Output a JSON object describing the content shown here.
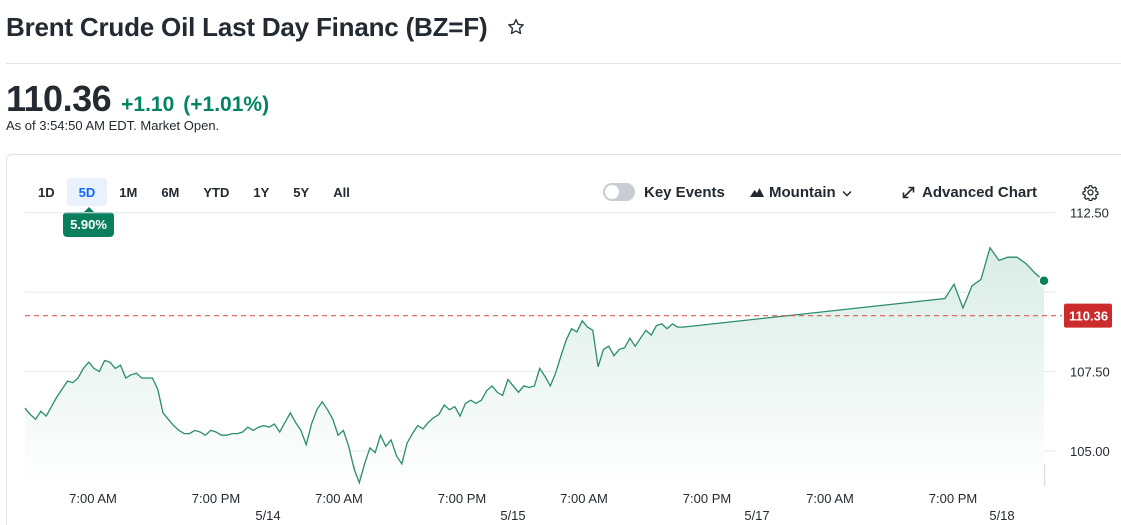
{
  "header": {
    "title": "Brent Crude Oil Last Day Financ (BZ=F)",
    "watchlist_icon": "star-outline-icon"
  },
  "quote": {
    "price": "110.36",
    "change": "+1.10",
    "change_percent": "(+1.01%)",
    "as_of": "As of 3:54:50 AM EDT. Market Open.",
    "positive_color": "#008463"
  },
  "range_tabs": [
    {
      "label": "1D",
      "active": false
    },
    {
      "label": "5D",
      "active": true
    },
    {
      "label": "1M",
      "active": false
    },
    {
      "label": "6M",
      "active": false
    },
    {
      "label": "YTD",
      "active": false
    },
    {
      "label": "1Y",
      "active": false
    },
    {
      "label": "5Y",
      "active": false
    },
    {
      "label": "All",
      "active": false
    }
  ],
  "range_badge": "5.90%",
  "toolbar": {
    "key_events_label": "Key Events",
    "key_events_on": false,
    "chart_type_label": "Mountain",
    "chart_type_icon": "mountain-icon",
    "advanced_chart_label": "Advanced Chart",
    "advanced_chart_icon": "expand-arrows-icon",
    "settings_icon": "gear-icon"
  },
  "chart_data": {
    "type": "area",
    "title": "",
    "xlabel": "",
    "ylabel": "",
    "ylim": [
      103.9,
      112.9
    ],
    "y_ticks": [
      "112.50",
      "107.50",
      "105.00"
    ],
    "x_time_ticks": [
      "7:00 AM",
      "7:00 PM",
      "7:00 AM",
      "7:00 PM",
      "7:00 AM",
      "7:00 PM",
      "7:00 AM",
      "7:00 PM"
    ],
    "x_date_ticks": [
      "5/14",
      "5/15",
      "5/17",
      "5/18"
    ],
    "previous_close": 109.26,
    "last_price": 110.36,
    "last_price_label": "110.36",
    "line_color": "#2a8c6e",
    "area_color": "#dcefe8",
    "prev_close_color": "#e05a5a",
    "last_price_color": "#cc2b2b",
    "grid": true,
    "series": [
      {
        "values": [
          106.35,
          106.15,
          106.0,
          106.25,
          106.1,
          106.4,
          106.7,
          106.95,
          107.2,
          107.15,
          107.3,
          107.6,
          107.8,
          107.6,
          107.5,
          107.85,
          107.8,
          107.6,
          107.7,
          107.3,
          107.4,
          107.45,
          107.3,
          107.3,
          107.3,
          106.95,
          106.2,
          106.0,
          105.8,
          105.65,
          105.55,
          105.55,
          105.65,
          105.6,
          105.5,
          105.65,
          105.6,
          105.5,
          105.5,
          105.55,
          105.55,
          105.6,
          105.75,
          105.65,
          105.75,
          105.8,
          105.75,
          105.85,
          105.6,
          105.9,
          106.2,
          105.9,
          105.65,
          105.2,
          105.85,
          106.3,
          106.55,
          106.3,
          106.0,
          105.5,
          105.65,
          105.15,
          104.45,
          104.0,
          104.6,
          105.1,
          104.95,
          105.5,
          105.15,
          105.35,
          104.85,
          104.6,
          105.25,
          105.55,
          105.8,
          105.7,
          105.9,
          106.05,
          106.15,
          106.45,
          106.3,
          106.4,
          106.1,
          106.5,
          106.6,
          106.5,
          106.6,
          106.9,
          107.05,
          106.85,
          106.75,
          107.25,
          107.05,
          106.85,
          107.05,
          107.0,
          107.05,
          107.6,
          107.35,
          107.05,
          107.45,
          108.0,
          108.5,
          108.85,
          108.75,
          109.1,
          108.9,
          108.8,
          107.65,
          108.2,
          108.3,
          108.0,
          108.2,
          108.25,
          108.55,
          108.3,
          108.55,
          108.8,
          108.65,
          108.95,
          109.0,
          108.85,
          109.0,
          108.9,
          108.9,
          109.8,
          110.25,
          109.5,
          110.2,
          110.4,
          111.4,
          111.0,
          111.1,
          111.1,
          110.9,
          110.6,
          110.36
        ]
      }
    ]
  }
}
